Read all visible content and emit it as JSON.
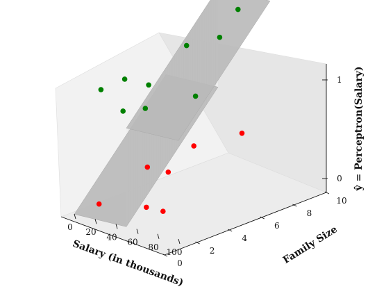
{
  "chart_data": {
    "type": "scatter",
    "projection": "3d",
    "xlabel": "Salary (in thousands)",
    "ylabel": "Family Size",
    "zlabel": "ŷ = Perceptron(Salary)",
    "xticks": [
      "0",
      "20",
      "40",
      "60",
      "80",
      "100"
    ],
    "yticks": [
      "0",
      "2",
      "4",
      "6",
      "8",
      "10"
    ],
    "zticks": [
      "0",
      "1"
    ],
    "xlim": [
      0,
      100
    ],
    "ylim": [
      0,
      10
    ],
    "zlim": [
      0,
      1
    ],
    "decision_threshold_salary": 50,
    "surface": "step function: ŷ = 0 for salary < 50, ŷ = 1 for salary ≥ 50 (gray plane)",
    "series": [
      {
        "color": "#008000",
        "class_label": 1,
        "points": [
          {
            "salary": 8,
            "family_size": 2,
            "y": 1
          },
          {
            "salary": 22,
            "family_size": 3,
            "y": 1
          },
          {
            "salary": 38,
            "family_size": 1,
            "y": 1
          },
          {
            "salary": 45,
            "family_size": 3,
            "y": 1
          },
          {
            "salary": 55,
            "family_size": 1.5,
            "y": 1
          },
          {
            "salary": 55,
            "family_size": 6,
            "y": 1
          },
          {
            "salary": 78,
            "family_size": 7,
            "y": 1
          },
          {
            "salary": 78,
            "family_size": 9,
            "y": 1
          },
          {
            "salary": 90,
            "family_size": 3,
            "y": 1
          }
        ]
      },
      {
        "color": "#ff0000",
        "class_label": 0,
        "points": [
          {
            "salary": 15,
            "family_size": 1,
            "y": 0
          },
          {
            "salary": 35,
            "family_size": 4,
            "y": 0
          },
          {
            "salary": 55,
            "family_size": 4,
            "y": 0
          },
          {
            "salary": 56,
            "family_size": 1.5,
            "y": 0
          },
          {
            "salary": 62,
            "family_size": 6,
            "y": 0
          },
          {
            "salary": 72,
            "family_size": 1.5,
            "y": 0
          },
          {
            "salary": 95,
            "family_size": 7.5,
            "y": 0
          }
        ]
      }
    ]
  }
}
